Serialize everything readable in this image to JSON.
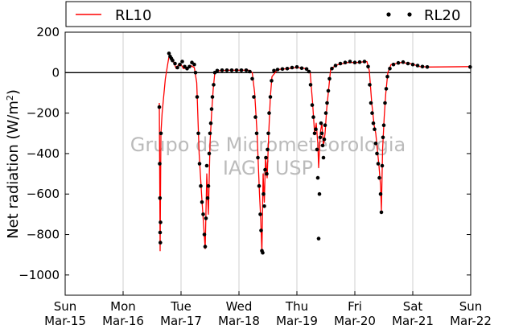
{
  "chart_data": {
    "type": "line",
    "ylabel": "Net radiation (W/m²)",
    "ylim": [
      -1100,
      200
    ],
    "yticks": [
      200,
      0,
      -200,
      -400,
      -600,
      -800,
      -1000
    ],
    "ytick_labels": [
      "200",
      "0",
      "−200",
      "−400",
      "−600",
      "−800",
      "−1000"
    ],
    "xlim": [
      "2015-03-15",
      "2015-03-22"
    ],
    "xticks": [
      {
        "x": "2015-03-15",
        "day": "Sun",
        "date": "Mar-15"
      },
      {
        "x": "2015-03-16",
        "day": "Mon",
        "date": "Mar-16"
      },
      {
        "x": "2015-03-17",
        "day": "Tue",
        "date": "Mar-17"
      },
      {
        "x": "2015-03-18",
        "day": "Wed",
        "date": "Mar-18"
      },
      {
        "x": "2015-03-19",
        "day": "Thu",
        "date": "Mar-19"
      },
      {
        "x": "2015-03-20",
        "day": "Fri",
        "date": "Mar-20"
      },
      {
        "x": "2015-03-21",
        "day": "Sat",
        "date": "Mar-21"
      },
      {
        "x": "2015-03-22",
        "day": "Sun",
        "date": "Mar-22"
      }
    ],
    "grid": "vertical",
    "zero_line": true,
    "legend": {
      "placement": "top",
      "entries": [
        "RL10",
        "RL20"
      ]
    },
    "watermark": [
      "Grupo de Micrometeorologia",
      "IAG / USP"
    ],
    "series": [
      {
        "name": "RL10",
        "style": "line",
        "color": "#ff0000",
        "points": [
          [
            "2015-03-16 15:00",
            -150
          ],
          [
            "2015-03-16 15:20",
            -880
          ],
          [
            "2015-03-16 15:40",
            -300
          ],
          [
            "2015-03-16 16:10",
            -200
          ],
          [
            "2015-03-16 17:30",
            -30
          ],
          [
            "2015-03-16 19:00",
            80
          ],
          [
            "2015-03-16 20:00",
            75
          ],
          [
            "2015-03-16 21:00",
            50
          ],
          [
            "2015-03-16 22:00",
            20
          ],
          [
            "2015-03-16 23:00",
            40
          ],
          [
            "2015-03-17 00:00",
            40
          ],
          [
            "2015-03-17 01:00",
            20
          ],
          [
            "2015-03-17 03:00",
            25
          ],
          [
            "2015-03-17 04:00",
            35
          ],
          [
            "2015-03-17 05:30",
            25
          ],
          [
            "2015-03-17 06:30",
            -50
          ],
          [
            "2015-03-17 07:30",
            -400
          ],
          [
            "2015-03-17 08:30",
            -600
          ],
          [
            "2015-03-17 09:30",
            -780
          ],
          [
            "2015-03-17 10:00",
            -870
          ],
          [
            "2015-03-17 10:40",
            -500
          ],
          [
            "2015-03-17 11:20",
            -700
          ],
          [
            "2015-03-17 12:00",
            -350
          ],
          [
            "2015-03-17 12:40",
            -200
          ],
          [
            "2015-03-17 13:20",
            -80
          ],
          [
            "2015-03-17 14:00",
            0
          ],
          [
            "2015-03-17 16:00",
            10
          ],
          [
            "2015-03-17 20:00",
            12
          ],
          [
            "2015-03-18 00:00",
            12
          ],
          [
            "2015-03-18 04:00",
            12
          ],
          [
            "2015-03-18 05:30",
            0
          ],
          [
            "2015-03-18 06:30",
            -100
          ],
          [
            "2015-03-18 07:30",
            -300
          ],
          [
            "2015-03-18 08:30",
            -600
          ],
          [
            "2015-03-18 09:00",
            -720
          ],
          [
            "2015-03-18 09:30",
            -890
          ],
          [
            "2015-03-18 10:00",
            -500
          ],
          [
            "2015-03-18 10:30",
            -640
          ],
          [
            "2015-03-18 11:00",
            -420
          ],
          [
            "2015-03-18 11:40",
            -520
          ],
          [
            "2015-03-18 12:20",
            -300
          ],
          [
            "2015-03-18 13:00",
            -120
          ],
          [
            "2015-03-18 13:40",
            -20
          ],
          [
            "2015-03-18 16:00",
            15
          ],
          [
            "2015-03-18 20:00",
            20
          ],
          [
            "2015-03-19 00:00",
            25
          ],
          [
            "2015-03-19 04:00",
            20
          ],
          [
            "2015-03-19 05:30",
            0
          ],
          [
            "2015-03-19 06:30",
            -150
          ],
          [
            "2015-03-19 07:20",
            -300
          ],
          [
            "2015-03-19 08:00",
            -250
          ],
          [
            "2015-03-19 08:40",
            -350
          ],
          [
            "2015-03-19 09:00",
            -470
          ],
          [
            "2015-03-19 09:40",
            -300
          ],
          [
            "2015-03-19 10:20",
            -250
          ],
          [
            "2015-03-19 11:00",
            -360
          ],
          [
            "2015-03-19 11:40",
            -300
          ],
          [
            "2015-03-19 12:20",
            -180
          ],
          [
            "2015-03-19 13:00",
            -100
          ],
          [
            "2015-03-19 14:00",
            20
          ],
          [
            "2015-03-19 17:00",
            40
          ],
          [
            "2015-03-19 21:00",
            50
          ],
          [
            "2015-03-20 01:00",
            50
          ],
          [
            "2015-03-20 05:00",
            55
          ],
          [
            "2015-03-20 06:00",
            10
          ],
          [
            "2015-03-20 07:00",
            -150
          ],
          [
            "2015-03-20 08:00",
            -260
          ],
          [
            "2015-03-20 08:40",
            -300
          ],
          [
            "2015-03-20 09:20",
            -380
          ],
          [
            "2015-03-20 10:00",
            -460
          ],
          [
            "2015-03-20 10:40",
            -560
          ],
          [
            "2015-03-20 11:00",
            -680
          ],
          [
            "2015-03-20 11:30",
            -380
          ],
          [
            "2015-03-20 12:10",
            -220
          ],
          [
            "2015-03-20 12:50",
            -100
          ],
          [
            "2015-03-20 13:40",
            0
          ],
          [
            "2015-03-20 15:00",
            40
          ],
          [
            "2015-03-20 19:00",
            50
          ],
          [
            "2015-03-20 23:00",
            45
          ],
          [
            "2015-03-21 03:00",
            30
          ],
          [
            "2015-03-21 07:00",
            28
          ],
          [
            "2015-03-21 23:30",
            30
          ]
        ]
      },
      {
        "name": "RL20",
        "style": "markers",
        "color": "#000000",
        "points": [
          [
            "2015-03-16 15:00",
            -170
          ],
          [
            "2015-03-16 15:10",
            -450
          ],
          [
            "2015-03-16 15:15",
            -620
          ],
          [
            "2015-03-16 15:20",
            -790
          ],
          [
            "2015-03-16 15:25",
            -840
          ],
          [
            "2015-03-16 15:30",
            -740
          ],
          [
            "2015-03-16 15:40",
            -300
          ],
          [
            "2015-03-16 19:00",
            95
          ],
          [
            "2015-03-16 19:30",
            80
          ],
          [
            "2015-03-16 20:00",
            70
          ],
          [
            "2015-03-16 20:30",
            60
          ],
          [
            "2015-03-16 21:30",
            45
          ],
          [
            "2015-03-16 22:30",
            25
          ],
          [
            "2015-03-16 23:30",
            40
          ],
          [
            "2015-03-17 00:30",
            55
          ],
          [
            "2015-03-17 01:30",
            30
          ],
          [
            "2015-03-17 02:30",
            20
          ],
          [
            "2015-03-17 03:30",
            30
          ],
          [
            "2015-03-17 04:30",
            50
          ],
          [
            "2015-03-17 05:30",
            40
          ],
          [
            "2015-03-17 06:00",
            0
          ],
          [
            "2015-03-17 06:40",
            -120
          ],
          [
            "2015-03-17 07:10",
            -300
          ],
          [
            "2015-03-17 07:40",
            -450
          ],
          [
            "2015-03-17 08:10",
            -560
          ],
          [
            "2015-03-17 08:40",
            -640
          ],
          [
            "2015-03-17 09:10",
            -700
          ],
          [
            "2015-03-17 09:40",
            -800
          ],
          [
            "2015-03-17 10:00",
            -860
          ],
          [
            "2015-03-17 10:20",
            -720
          ],
          [
            "2015-03-17 10:40",
            -460
          ],
          [
            "2015-03-17 11:00",
            -620
          ],
          [
            "2015-03-17 11:20",
            -560
          ],
          [
            "2015-03-17 11:40",
            -400
          ],
          [
            "2015-03-17 12:00",
            -300
          ],
          [
            "2015-03-17 12:20",
            -250
          ],
          [
            "2015-03-17 12:40",
            -180
          ],
          [
            "2015-03-17 13:00",
            -120
          ],
          [
            "2015-03-17 13:30",
            -60
          ],
          [
            "2015-03-17 14:00",
            0
          ],
          [
            "2015-03-17 15:00",
            10
          ],
          [
            "2015-03-17 17:00",
            12
          ],
          [
            "2015-03-17 19:00",
            12
          ],
          [
            "2015-03-17 21:00",
            12
          ],
          [
            "2015-03-17 23:00",
            12
          ],
          [
            "2015-03-18 01:00",
            12
          ],
          [
            "2015-03-18 03:00",
            12
          ],
          [
            "2015-03-18 04:30",
            5
          ],
          [
            "2015-03-18 05:30",
            -30
          ],
          [
            "2015-03-18 06:10",
            -120
          ],
          [
            "2015-03-18 06:50",
            -220
          ],
          [
            "2015-03-18 07:20",
            -300
          ],
          [
            "2015-03-18 07:50",
            -420
          ],
          [
            "2015-03-18 08:20",
            -560
          ],
          [
            "2015-03-18 08:50",
            -700
          ],
          [
            "2015-03-18 09:10",
            -780
          ],
          [
            "2015-03-18 09:30",
            -880
          ],
          [
            "2015-03-18 09:50",
            -890
          ],
          [
            "2015-03-18 10:10",
            -600
          ],
          [
            "2015-03-18 10:30",
            -660
          ],
          [
            "2015-03-18 10:50",
            -480
          ],
          [
            "2015-03-18 11:10",
            -420
          ],
          [
            "2015-03-18 11:30",
            -500
          ],
          [
            "2015-03-18 11:50",
            -380
          ],
          [
            "2015-03-18 12:10",
            -300
          ],
          [
            "2015-03-18 12:30",
            -200
          ],
          [
            "2015-03-18 13:00",
            -120
          ],
          [
            "2015-03-18 13:30",
            -40
          ],
          [
            "2015-03-18 14:30",
            10
          ],
          [
            "2015-03-18 16:00",
            15
          ],
          [
            "2015-03-18 18:00",
            18
          ],
          [
            "2015-03-18 20:00",
            20
          ],
          [
            "2015-03-18 22:00",
            25
          ],
          [
            "2015-03-19 00:00",
            28
          ],
          [
            "2015-03-19 02:00",
            22
          ],
          [
            "2015-03-19 04:00",
            18
          ],
          [
            "2015-03-19 05:00",
            5
          ],
          [
            "2015-03-19 05:40",
            -60
          ],
          [
            "2015-03-19 06:20",
            -160
          ],
          [
            "2015-03-19 06:50",
            -220
          ],
          [
            "2015-03-19 07:20",
            -300
          ],
          [
            "2015-03-19 07:50",
            -280
          ],
          [
            "2015-03-19 08:20",
            -380
          ],
          [
            "2015-03-19 08:40",
            -520
          ],
          [
            "2015-03-19 09:00",
            -820
          ],
          [
            "2015-03-19 09:20",
            -600
          ],
          [
            "2015-03-19 09:40",
            -320
          ],
          [
            "2015-03-19 10:00",
            -250
          ],
          [
            "2015-03-19 10:20",
            -300
          ],
          [
            "2015-03-19 10:40",
            -360
          ],
          [
            "2015-03-19 11:00",
            -420
          ],
          [
            "2015-03-19 11:20",
            -330
          ],
          [
            "2015-03-19 11:40",
            -260
          ],
          [
            "2015-03-19 12:00",
            -200
          ],
          [
            "2015-03-19 12:30",
            -150
          ],
          [
            "2015-03-19 13:00",
            -90
          ],
          [
            "2015-03-19 13:30",
            -30
          ],
          [
            "2015-03-19 14:30",
            20
          ],
          [
            "2015-03-19 16:00",
            35
          ],
          [
            "2015-03-19 18:00",
            45
          ],
          [
            "2015-03-19 20:00",
            50
          ],
          [
            "2015-03-19 22:00",
            55
          ],
          [
            "2015-03-20 00:00",
            50
          ],
          [
            "2015-03-20 02:00",
            52
          ],
          [
            "2015-03-20 04:00",
            55
          ],
          [
            "2015-03-20 05:30",
            30
          ],
          [
            "2015-03-20 06:10",
            -60
          ],
          [
            "2015-03-20 06:40",
            -150
          ],
          [
            "2015-03-20 07:10",
            -200
          ],
          [
            "2015-03-20 07:40",
            -250
          ],
          [
            "2015-03-20 08:10",
            -280
          ],
          [
            "2015-03-20 08:40",
            -350
          ],
          [
            "2015-03-20 09:10",
            -400
          ],
          [
            "2015-03-20 09:40",
            -450
          ],
          [
            "2015-03-20 10:10",
            -520
          ],
          [
            "2015-03-20 10:40",
            -600
          ],
          [
            "2015-03-20 11:00",
            -690
          ],
          [
            "2015-03-20 11:20",
            -460
          ],
          [
            "2015-03-20 11:40",
            -320
          ],
          [
            "2015-03-20 12:00",
            -260
          ],
          [
            "2015-03-20 12:30",
            -150
          ],
          [
            "2015-03-20 13:00",
            -80
          ],
          [
            "2015-03-20 13:30",
            -20
          ],
          [
            "2015-03-20 14:30",
            20
          ],
          [
            "2015-03-20 16:00",
            40
          ],
          [
            "2015-03-20 18:00",
            48
          ],
          [
            "2015-03-20 20:00",
            52
          ],
          [
            "2015-03-20 22:00",
            45
          ],
          [
            "2015-03-21 00:00",
            40
          ],
          [
            "2015-03-21 02:00",
            35
          ],
          [
            "2015-03-21 04:00",
            30
          ],
          [
            "2015-03-21 06:00",
            28
          ],
          [
            "2015-03-21 23:45",
            28
          ]
        ]
      }
    ]
  }
}
